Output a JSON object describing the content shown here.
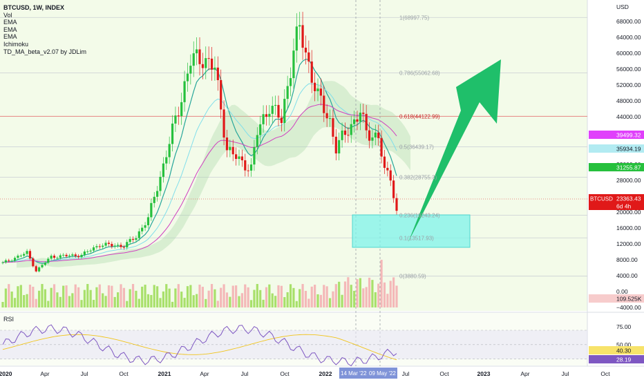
{
  "header": {
    "symbol": "BTCUSD, 1W, INDEX",
    "indicators": [
      "Vol",
      "EMA",
      "EMA",
      "EMA",
      "Ichimoku",
      "TD_MA_beta_v2.07 by JDLim"
    ]
  },
  "price_axis": {
    "currency": "USD",
    "ticks": [
      "68000.00",
      "64000.00",
      "60000.00",
      "56000.00",
      "52000.00",
      "48000.00",
      "44000.00",
      "40000.00",
      "36000.00",
      "32000.00",
      "28000.00",
      "24000.00",
      "20000.00",
      "16000.00",
      "12000.00",
      "8000.00",
      "4000.00",
      "0.00",
      "−4000.00"
    ]
  },
  "badges": [
    {
      "value": "39499.32",
      "color": "#e040fb"
    },
    {
      "value": "35934.19",
      "color": "#b2ebf2"
    },
    {
      "value": "31255.87",
      "color": "#26c03d"
    },
    {
      "value": "23363.43",
      "color": "#e01919"
    },
    {
      "value": "6d 4h",
      "color": "#e01919"
    },
    {
      "value": "109.525K",
      "color": "#f7cccc"
    }
  ],
  "symbol_tag": "BTCUSD",
  "rsi_panel": {
    "title": "RSI",
    "ticks": [
      "75.00",
      "50.00"
    ],
    "badges": [
      "40.30",
      "28.19"
    ]
  },
  "time_axis": {
    "labels": [
      "2020",
      "Apr",
      "Jul",
      "Oct",
      "2021",
      "Apr",
      "Jul",
      "Oct",
      "2022",
      "Jul",
      "Oct",
      "2023",
      "Apr",
      "Jul",
      "Oct"
    ],
    "range_badge": [
      "14 Mar '22",
      "09 May '22"
    ]
  },
  "chart_data": {
    "type": "candlestick",
    "interval": "1W",
    "fib_levels": [
      {
        "ratio": "1",
        "value": 68997.75
      },
      {
        "ratio": "0.786",
        "value": 55062.68
      },
      {
        "ratio": "0.618",
        "value": 44122.99
      },
      {
        "ratio": "0.5",
        "value": 36439.17
      },
      {
        "ratio": "0.382",
        "value": 28755.3
      },
      {
        "ratio": "0.236",
        "value": 19243.24
      },
      {
        "ratio": "0.1",
        "value": 13517.93
      },
      {
        "ratio": "0",
        "value": 3880.59
      }
    ],
    "fib_labels": [
      "1(68997.75)",
      "0.786(55062.68)",
      "0.618(44122.99)",
      "0.5(36439.17)",
      "0.382(28755.3)",
      "0.236(19243.24)",
      "0.1(13517.93)",
      "0(3880.59)"
    ],
    "last_price": 23363.43,
    "target_zone": {
      "low": 11000,
      "high": 20000
    },
    "colors": {
      "up": "#26c03d",
      "down": "#e01919",
      "ema_fast": "#26a69a",
      "ema_mid": "#80deea",
      "ema_slow": "#d040c0",
      "rsi": "#7e57c2",
      "arrow": "#1fbf6a",
      "zone": "#7ff3ea"
    }
  }
}
